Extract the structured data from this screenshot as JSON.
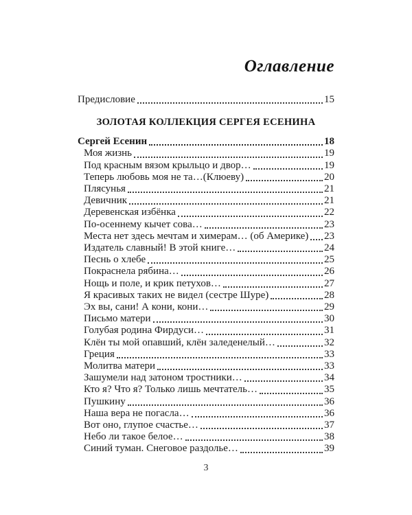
{
  "page": {
    "title": "Оглавление",
    "footer_page_number": "3"
  },
  "toc": {
    "preface": {
      "label": "Предисловие",
      "page": "15"
    },
    "section_header": "ЗОЛОТАЯ КОЛЛЕКЦИЯ СЕРГЕЯ ЕСЕНИНА",
    "author_entry": {
      "label": "Сергей Есенин",
      "page": "18"
    },
    "entries": [
      {
        "label": "Моя жизнь",
        "page": "19"
      },
      {
        "label": "Под красным вязом крыльцо и двор…",
        "page": "19"
      },
      {
        "label": "Теперь любовь моя не та…(Клюеву)",
        "page": "20"
      },
      {
        "label": "Плясунья",
        "page": "21"
      },
      {
        "label": "Девичник",
        "page": "21"
      },
      {
        "label": "Деревенская избёнка",
        "page": "22"
      },
      {
        "label": "По-осеннему кычет сова…",
        "page": "23"
      },
      {
        "label": "Места нет здесь мечтам и химерам… (об Америке)",
        "page": "23"
      },
      {
        "label": "Издатель славный! В этой книге…",
        "page": "24"
      },
      {
        "label": "Песнь о хлебе",
        "page": "25"
      },
      {
        "label": "Покраснела рябина…",
        "page": "26"
      },
      {
        "label": "Нощь и поле, и крик петухов…",
        "page": "27"
      },
      {
        "label": "Я красивых таких не видел (сестре Шуре)",
        "page": "28"
      },
      {
        "label": "Эх вы, сани! А кони, кони…",
        "page": "29"
      },
      {
        "label": "Письмо матери",
        "page": "30"
      },
      {
        "label": "Голубая родина Фирдуси…",
        "page": "31"
      },
      {
        "label": "Клён ты мой опавший, клён заледенелый…",
        "page": "32"
      },
      {
        "label": "Греция",
        "page": "33"
      },
      {
        "label": "Молитва матери",
        "page": "33"
      },
      {
        "label": "Зашумели над затоном тростники…",
        "page": "34"
      },
      {
        "label": "Кто я? Что я? Только лишь мечтатель…",
        "page": "35"
      },
      {
        "label": "Пушкину",
        "page": "36"
      },
      {
        "label": "Наша вера не погасла…",
        "page": "36"
      },
      {
        "label": "Вот оно, глупое счастье…",
        "page": "37"
      },
      {
        "label": "Небо ли такое белое…",
        "page": "38"
      },
      {
        "label": "Синий туман. Снеговое раздолье…",
        "page": "39"
      }
    ]
  }
}
